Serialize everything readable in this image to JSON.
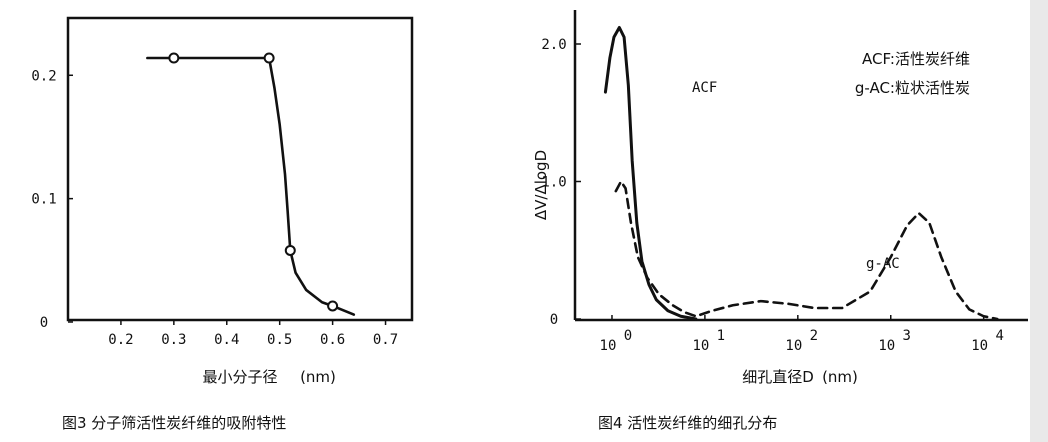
{
  "chart_data": [
    {
      "type": "line",
      "caption": "图3  分子筛活性炭纤维的吸附特性",
      "xlabel": "最小分子径",
      "xunit": "(nm)",
      "ylabel": "",
      "xlim": [
        0.1,
        0.75
      ],
      "ylim": [
        0,
        0.24
      ],
      "xticks": [
        0.2,
        0.3,
        0.4,
        0.5,
        0.6,
        0.7
      ],
      "xtick_labels": [
        "0.2",
        "0.3",
        "0.4",
        "0.5",
        "0.6",
        "0.7"
      ],
      "yticks": [
        0,
        0.1,
        0.2
      ],
      "ytick_labels": [
        "0",
        "0.1",
        "0.2"
      ],
      "points": [
        {
          "x": 0.3,
          "y": 0.214
        },
        {
          "x": 0.48,
          "y": 0.214
        },
        {
          "x": 0.52,
          "y": 0.058
        },
        {
          "x": 0.6,
          "y": 0.013
        }
      ],
      "curve": [
        [
          0.25,
          0.214
        ],
        [
          0.3,
          0.214
        ],
        [
          0.38,
          0.214
        ],
        [
          0.48,
          0.214
        ],
        [
          0.49,
          0.19
        ],
        [
          0.5,
          0.16
        ],
        [
          0.51,
          0.12
        ],
        [
          0.515,
          0.09
        ],
        [
          0.52,
          0.058
        ],
        [
          0.53,
          0.04
        ],
        [
          0.55,
          0.026
        ],
        [
          0.58,
          0.016
        ],
        [
          0.6,
          0.013
        ],
        [
          0.64,
          0.006
        ]
      ]
    },
    {
      "type": "line",
      "caption": "图4  活性炭纤维的细孔分布",
      "xlabel": "细孔直径D",
      "xunit": "(nm)",
      "ylabel": "ΔV/ΔlogD",
      "xscale": "log",
      "xlim": [
        0.4,
        30000
      ],
      "ylim": [
        0,
        2.3
      ],
      "xticks": [
        1,
        10,
        100,
        1000,
        10000
      ],
      "xtick_labels": [
        {
          "base": "10",
          "exp": "0"
        },
        {
          "base": "10",
          "exp": "1"
        },
        {
          "base": "10",
          "exp": "2"
        },
        {
          "base": "10",
          "exp": "3"
        },
        {
          "base": "10",
          "exp": "4"
        }
      ],
      "yticks": [
        0,
        1.0,
        2.0
      ],
      "ytick_labels": [
        "0",
        "1.0",
        "2.0"
      ],
      "legend": [
        "ACF:活性炭纤维",
        "g-AC:粒状活性炭"
      ],
      "series": [
        {
          "name": "ACF",
          "style": "solid",
          "points": [
            [
              0.85,
              1.65
            ],
            [
              0.95,
              1.9
            ],
            [
              1.05,
              2.05
            ],
            [
              1.2,
              2.12
            ],
            [
              1.35,
              2.05
            ],
            [
              1.5,
              1.7
            ],
            [
              1.65,
              1.15
            ],
            [
              1.85,
              0.7
            ],
            [
              2.1,
              0.42
            ],
            [
              2.5,
              0.25
            ],
            [
              3.0,
              0.14
            ],
            [
              4.0,
              0.06
            ],
            [
              5.5,
              0.02
            ],
            [
              8.0,
              0.0
            ]
          ]
        },
        {
          "name": "g-AC",
          "style": "dashed",
          "points": [
            [
              1.1,
              0.93
            ],
            [
              1.25,
              1.0
            ],
            [
              1.4,
              0.95
            ],
            [
              1.6,
              0.7
            ],
            [
              1.9,
              0.45
            ],
            [
              2.4,
              0.3
            ],
            [
              3.2,
              0.18
            ],
            [
              4.5,
              0.1
            ],
            [
              6.0,
              0.05
            ],
            [
              8.0,
              0.02
            ],
            [
              12,
              0.06
            ],
            [
              20,
              0.1
            ],
            [
              40,
              0.13
            ],
            [
              80,
              0.11
            ],
            [
              150,
              0.08
            ],
            [
              300,
              0.08
            ],
            [
              600,
              0.2
            ],
            [
              1000,
              0.45
            ],
            [
              1500,
              0.68
            ],
            [
              2000,
              0.77
            ],
            [
              2600,
              0.7
            ],
            [
              3500,
              0.45
            ],
            [
              5000,
              0.2
            ],
            [
              7000,
              0.07
            ],
            [
              10000,
              0.02
            ],
            [
              14000,
              0.0
            ]
          ]
        }
      ]
    }
  ]
}
